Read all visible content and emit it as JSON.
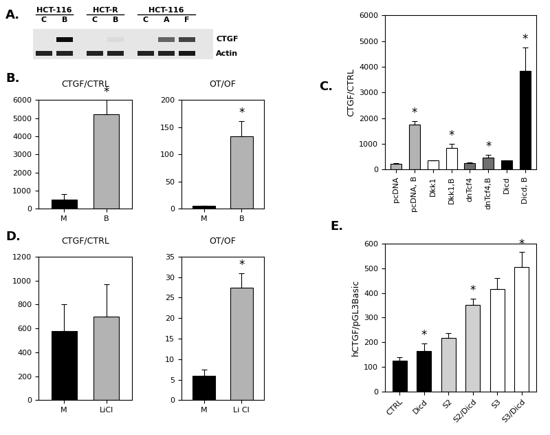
{
  "blot": {
    "panel": "A.",
    "groups": [
      {
        "name": "HCT-116",
        "lanes": [
          "C",
          "B"
        ]
      },
      {
        "name": "HCT-R",
        "lanes": [
          "C",
          "B"
        ]
      },
      {
        "name": "HCT-116",
        "lanes": [
          "C",
          "A",
          "F"
        ]
      }
    ],
    "bands": [
      {
        "name": "CTGF",
        "intensity": [
          0,
          1,
          0,
          0.05,
          0,
          0.6,
          0.75
        ]
      },
      {
        "name": "Actin",
        "intensity": [
          0.9,
          0.9,
          0.9,
          0.9,
          0.9,
          0.9,
          0.95
        ]
      }
    ]
  },
  "chart_data": [
    {
      "type": "bar",
      "panel": "B.",
      "title": "CTGF/CTRL",
      "categories": [
        "M",
        "B"
      ],
      "values": [
        500,
        5200
      ],
      "errors": [
        300,
        800
      ],
      "colors": [
        "#000000",
        "#b3b3b3"
      ],
      "significance": [
        null,
        "*"
      ],
      "ylim": [
        0,
        6000
      ],
      "yticks": [
        0,
        1000,
        2000,
        3000,
        4000,
        5000,
        6000
      ]
    },
    {
      "type": "bar",
      "title": "OT/OF",
      "categories": [
        "M",
        "B"
      ],
      "values": [
        5,
        133
      ],
      "errors": [
        1,
        28
      ],
      "colors": [
        "#000000",
        "#b3b3b3"
      ],
      "significance": [
        null,
        "*"
      ],
      "ylim": [
        0,
        200
      ],
      "yticks": [
        0,
        50,
        100,
        150,
        200
      ]
    },
    {
      "type": "bar",
      "panel": "C.",
      "ylabel": "CTGF/CTRL",
      "categories": [
        "pcDNA",
        "pcDNA, B",
        "Dkk1",
        "Dkk1,B",
        "dnTcf4",
        "dnTcf4,B",
        "Dicd",
        "Dicd, B"
      ],
      "values": [
        230,
        1750,
        350,
        850,
        250,
        470,
        350,
        3850
      ],
      "errors": [
        30,
        130,
        0,
        150,
        20,
        100,
        20,
        900
      ],
      "colors": [
        "#b3b3b3",
        "#b3b3b3",
        "#ffffff",
        "#ffffff",
        "#707070",
        "#707070",
        "#000000",
        "#000000"
      ],
      "significance": [
        null,
        "*",
        null,
        "*",
        null,
        "*",
        null,
        "*"
      ],
      "ylim": [
        0,
        6000
      ],
      "yticks": [
        0,
        1000,
        2000,
        3000,
        4000,
        5000,
        6000
      ]
    },
    {
      "type": "bar",
      "panel": "D.",
      "title": "CTGF/CTRL",
      "categories": [
        "M",
        "LiCl"
      ],
      "values": [
        580,
        700
      ],
      "errors": [
        220,
        270
      ],
      "colors": [
        "#000000",
        "#b3b3b3"
      ],
      "ylim": [
        0,
        1200
      ],
      "yticks": [
        0,
        200,
        400,
        600,
        800,
        1000,
        1200
      ]
    },
    {
      "type": "bar",
      "title": "OT/OF",
      "categories": [
        "M",
        "Li Cl"
      ],
      "values": [
        6,
        27.5
      ],
      "errors": [
        1.5,
        3.5
      ],
      "colors": [
        "#000000",
        "#b3b3b3"
      ],
      "significance": [
        null,
        "*"
      ],
      "ylim": [
        0,
        35
      ],
      "yticks": [
        0,
        5,
        10,
        15,
        20,
        25,
        30,
        35
      ]
    },
    {
      "type": "bar",
      "panel": "E.",
      "ylabel": "hCTGF/pGL3Basic",
      "categories": [
        "CTRL",
        "Dicd",
        "S2",
        "S2/Dicd",
        "S3",
        "S3/Dicd"
      ],
      "values": [
        125,
        165,
        218,
        352,
        415,
        505
      ],
      "errors": [
        15,
        30,
        20,
        25,
        45,
        60
      ],
      "colors": [
        "#000000",
        "#000000",
        "#d0d0d0",
        "#d0d0d0",
        "#ffffff",
        "#ffffff"
      ],
      "significance": [
        null,
        "*",
        null,
        "*",
        null,
        "*"
      ],
      "ylim": [
        0,
        600
      ],
      "yticks": [
        0,
        100,
        200,
        300,
        400,
        500,
        600
      ]
    }
  ]
}
